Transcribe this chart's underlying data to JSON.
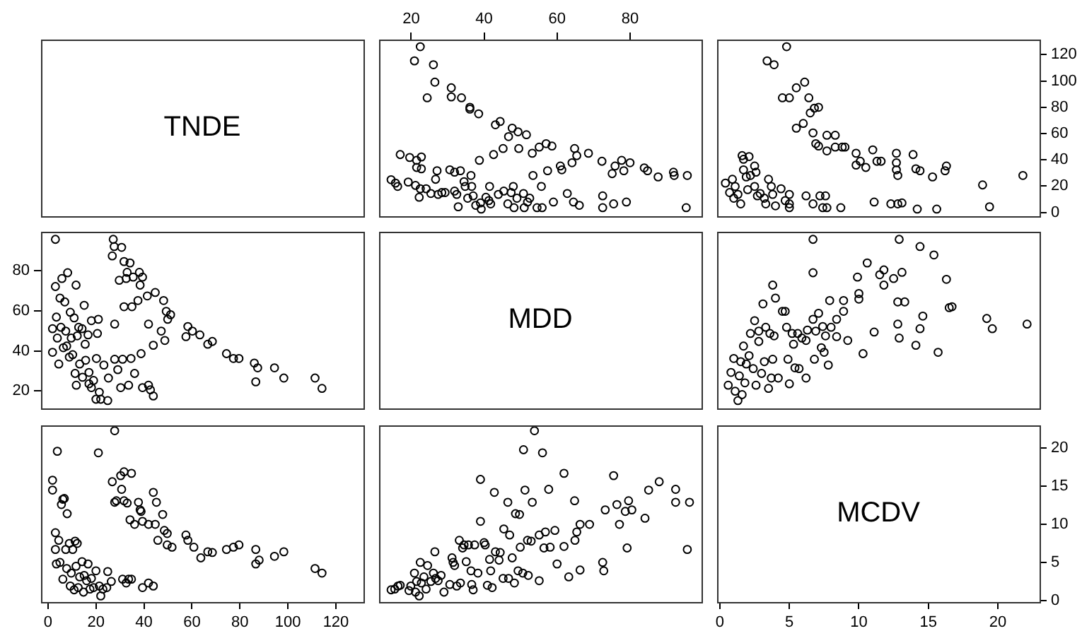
{
  "chart_data": [
    {
      "type": "other",
      "title": "TNDE"
    },
    {
      "type": "scatter",
      "xlim": [
        11.2,
        99.6
      ],
      "ylim": [
        -2.9,
        131.5
      ],
      "xticks": [
        20,
        40,
        60,
        80
      ],
      "tick_labels": "x",
      "marker": "circle",
      "series": [
        {
          "color": "#000000",
          "x": [
            14.5,
            15.7,
            16.3,
            17.0,
            19.2,
            19.6,
            20.9,
            22.5,
            21.2,
            21.5,
            21.5,
            22.8,
            22.8,
            22.5,
            22.2,
            24.1,
            24.4,
            26.1,
            26.5,
            27.1,
            26.7,
            25.4,
            27.4,
            28.4,
            29.3,
            31.0,
            31.0,
            30.6,
            31.9,
            31.9,
            32.5,
            32.9,
            33.5,
            33.8,
            34.5,
            34.8,
            35.5,
            36.1,
            36.1,
            36.4,
            36.6,
            37.0,
            37.7,
            38.5,
            38.7,
            39.0,
            39.2,
            40.5,
            41.3,
            41.5,
            41.8,
            42.6,
            43.1,
            44.4,
            43.9,
            45.2,
            45.4,
            46.5,
            46.7,
            47.4,
            47.7,
            48.0,
            48.2,
            49.3,
            49.5,
            49.0,
            50.8,
            51.0,
            51.6,
            51.9,
            52.5,
            53.2,
            53.4,
            54.5,
            55.1,
            55.7,
            55.9,
            57.0,
            57.4,
            58.6,
            59.0,
            60.9,
            61.3,
            62.8,
            64.1,
            64.5,
            64.8,
            65.4,
            66.1,
            68.6,
            72.3,
            72.5,
            72.5,
            75.1,
            75.9,
            77.7,
            78.3,
            80.0,
            79.0,
            83.9,
            84.8,
            87.7,
            91.9,
            92.1,
            95.7,
            95.4,
            75.5
          ],
          "values": [
            24.9,
            22.3,
            19.8,
            44.0,
            23.1,
            41.8,
            115.3,
            126.1,
            20.5,
            34.2,
            39.6,
            42.2,
            33.2,
            18.0,
            11.5,
            18.0,
            87.2,
            112.4,
            99.1,
            31.7,
            25.2,
            14.4,
            13.7,
            15.1,
            15.1,
            94.8,
            87.9,
            32.4,
            30.6,
            16.2,
            13.7,
            4.3,
            31.7,
            87.2,
            23.4,
            19.8,
            10.8,
            80.0,
            78.6,
            28.1,
            19.8,
            12.6,
            5.4,
            75.0,
            39.6,
            7.2,
            2.5,
            11.5,
            9.0,
            19.8,
            6.5,
            44.0,
            66.7,
            69.2,
            13.7,
            48.6,
            16.2,
            6.5,
            57.7,
            15.1,
            64.1,
            19.8,
            3.6,
            61.3,
            48.6,
            10.8,
            14.4,
            3.6,
            59.1,
            7.9,
            10.8,
            45.0,
            28.1,
            3.6,
            49.7,
            19.8,
            3.6,
            52.3,
            31.7,
            50.5,
            7.9,
            35.3,
            32.4,
            14.4,
            37.8,
            7.9,
            48.6,
            43.2,
            5.4,
            45.0,
            38.9,
            12.6,
            3.6,
            29.5,
            35.3,
            39.6,
            31.7,
            37.8,
            7.9,
            33.9,
            31.7,
            27.0,
            30.6,
            28.1,
            28.1,
            3.6,
            6.5
          ]
        }
      ]
    },
    {
      "type": "scatter",
      "xlim": [
        -0.2,
        23.0
      ],
      "ylim": [
        -2.9,
        131.5
      ],
      "yticks": [
        0,
        20,
        40,
        60,
        80,
        100,
        120
      ],
      "tick_labels": "y",
      "marker": "circle",
      "series": [
        {
          "color": "#000000",
          "x": [
            0.4,
            0.7,
            0.9,
            1.0,
            1.1,
            1.3,
            1.5,
            1.6,
            1.7,
            1.7,
            1.9,
            2.0,
            2.1,
            2.2,
            2.5,
            2.5,
            2.6,
            2.7,
            2.9,
            3.2,
            3.3,
            3.4,
            3.5,
            3.7,
            3.9,
            3.8,
            4.0,
            4.5,
            4.4,
            4.7,
            4.8,
            5.0,
            5.0,
            5.0,
            5.0,
            5.5,
            5.5,
            6.0,
            6.1,
            6.2,
            6.4,
            6.5,
            6.7,
            6.7,
            6.8,
            6.9,
            7.1,
            7.1,
            7.2,
            7.4,
            7.6,
            7.7,
            7.7,
            7.7,
            8.3,
            8.3,
            8.8,
            9.0,
            8.7,
            9.8,
            9.8,
            10.1,
            10.5,
            11.0,
            11.1,
            11.3,
            11.6,
            12.3,
            12.7,
            12.7,
            12.7,
            12.8,
            12.8,
            13.1,
            13.9,
            14.1,
            14.4,
            14.2,
            15.3,
            15.6,
            16.2,
            16.3,
            18.9,
            19.4,
            21.8
          ],
          "values": [
            22.3,
            15.1,
            25.2,
            10.8,
            19.8,
            13.7,
            6.5,
            43.2,
            40.4,
            32.4,
            27.0,
            17.3,
            42.5,
            28.1,
            35.3,
            19.8,
            30.6,
            12.6,
            14.4,
            10.8,
            6.5,
            115.3,
            25.2,
            19.8,
            112.4,
            13.7,
            5.0,
            87.2,
            18.0,
            9.0,
            126.1,
            3.6,
            87.2,
            13.7,
            6.5,
            94.8,
            64.1,
            67.7,
            99.1,
            12.6,
            87.2,
            75.7,
            6.5,
            60.5,
            79.3,
            52.3,
            80.0,
            50.5,
            12.6,
            3.6,
            12.6,
            46.8,
            58.7,
            3.6,
            58.7,
            49.7,
            49.7,
            49.7,
            3.6,
            45.0,
            36.0,
            38.9,
            34.2,
            47.6,
            7.9,
            38.9,
            38.9,
            6.5,
            45.0,
            37.8,
            32.4,
            28.1,
            6.5,
            7.2,
            44.0,
            33.2,
            31.7,
            2.5,
            27.0,
            2.5,
            31.7,
            35.3,
            20.9,
            4.3,
            28.1
          ]
        }
      ]
    },
    {
      "type": "scatter",
      "xlim": [
        -2.9,
        131.5
      ],
      "ylim": [
        11.2,
        99.6
      ],
      "yticks": [
        20,
        40,
        60,
        80
      ],
      "tick_labels": "y",
      "marker": "circle",
      "series": [
        {
          "color": "#000000",
          "x": [
            3.1,
            1.9,
            1.9,
            3.1,
            3.5,
            3.9,
            4.5,
            5.0,
            5.4,
            5.8,
            6.4,
            7.0,
            7.4,
            7.8,
            8.2,
            8.9,
            9.3,
            9.7,
            10.3,
            10.9,
            11.3,
            11.7,
            11.8,
            12.2,
            12.8,
            13.2,
            14.2,
            14.4,
            15.1,
            15.5,
            15.7,
            16.7,
            17.1,
            17.1,
            18.1,
            18.1,
            19.0,
            20.0,
            20.2,
            20.6,
            21.0,
            21.4,
            22.0,
            23.3,
            24.9,
            25.2,
            26.8,
            27.2,
            27.6,
            27.8,
            27.8,
            29.1,
            29.7,
            30.3,
            30.7,
            31.1,
            31.7,
            31.7,
            32.6,
            33.0,
            33.6,
            34.2,
            34.6,
            35.0,
            35.5,
            36.1,
            37.5,
            38.1,
            38.4,
            38.8,
            39.4,
            39.4,
            41.4,
            41.9,
            41.9,
            42.7,
            43.9,
            43.9,
            44.7,
            47.2,
            48.2,
            48.7,
            49.3,
            49.9,
            51.1,
            57.5,
            58.3,
            60.2,
            63.3,
            66.6,
            68.5,
            74.4,
            77.3,
            79.6,
            86.0,
            86.6,
            87.4,
            94.4,
            98.3,
            111.3,
            114.2
          ],
          "values": [
            95.8,
            51.1,
            39.3,
            72.2,
            56.9,
            46.4,
            33.4,
            66.4,
            51.8,
            76.2,
            41.6,
            64.5,
            49.9,
            42.4,
            79.1,
            36.9,
            59.3,
            46.4,
            38.1,
            56.5,
            28.7,
            72.9,
            22.8,
            47.5,
            51.8,
            33.4,
            51.1,
            26.8,
            62.8,
            43.3,
            35.3,
            48.0,
            29.2,
            23.5,
            55.1,
            21.6,
            25.2,
            15.8,
            36.2,
            48.7,
            55.8,
            19.3,
            15.8,
            32.9,
            15.1,
            26.4,
            87.5,
            95.8,
            92.2,
            53.4,
            35.8,
            30.6,
            75.3,
            21.6,
            91.8,
            35.8,
            62.1,
            84.7,
            76.2,
            79.3,
            22.8,
            84.0,
            36.2,
            62.1,
            76.9,
            28.7,
            65.2,
            79.3,
            72.9,
            38.6,
            76.9,
            21.6,
            67.5,
            53.4,
            22.8,
            20.5,
            42.8,
            17.4,
            69.2,
            49.9,
            65.2,
            45.2,
            59.8,
            55.8,
            58.1,
            47.1,
            52.2,
            49.9,
            48.0,
            43.3,
            44.7,
            38.6,
            36.2,
            36.2,
            33.9,
            24.5,
            31.5,
            31.5,
            26.4,
            26.4,
            21.2
          ]
        }
      ]
    },
    {
      "type": "other",
      "title": "MDD"
    },
    {
      "type": "scatter",
      "xlim": [
        -0.2,
        23.0
      ],
      "ylim": [
        11.2,
        99.6
      ],
      "tick_labels": false,
      "marker": "circle",
      "series": [
        {
          "color": "#000000",
          "x": [
            0.6,
            0.8,
            1.0,
            1.1,
            1.3,
            1.4,
            1.5,
            1.6,
            1.7,
            1.8,
            1.9,
            2.1,
            2.2,
            2.4,
            2.5,
            2.6,
            2.8,
            2.8,
            3.0,
            3.1,
            3.2,
            3.3,
            3.5,
            3.6,
            3.7,
            3.8,
            3.8,
            3.9,
            4.0,
            4.2,
            4.5,
            4.7,
            4.8,
            4.9,
            5.0,
            5.2,
            5.3,
            5.4,
            5.6,
            5.7,
            5.9,
            6.2,
            6.2,
            6.3,
            6.7,
            6.7,
            6.7,
            6.8,
            6.9,
            7.1,
            7.3,
            7.4,
            7.5,
            7.6,
            7.8,
            7.9,
            8.0,
            8.4,
            8.4,
            8.9,
            8.9,
            9.2,
            9.9,
            10.0,
            10.0,
            10.3,
            10.6,
            11.1,
            11.5,
            11.8,
            11.8,
            12.5,
            12.8,
            12.8,
            12.9,
            12.9,
            13.1,
            13.3,
            14.1,
            14.4,
            14.4,
            14.6,
            15.4,
            15.7,
            16.3,
            16.5,
            16.7,
            19.2,
            19.6,
            22.1
          ],
          "values": [
            22.8,
            29.2,
            36.2,
            19.8,
            15.1,
            27.5,
            34.6,
            18.1,
            42.4,
            24.0,
            33.4,
            37.6,
            48.7,
            31.1,
            55.1,
            22.8,
            44.7,
            49.9,
            28.7,
            63.5,
            34.6,
            51.8,
            21.2,
            48.7,
            26.4,
            72.9,
            35.8,
            47.5,
            66.4,
            26.4,
            59.8,
            59.8,
            51.8,
            35.8,
            23.5,
            48.7,
            43.3,
            31.5,
            48.7,
            31.1,
            46.4,
            45.2,
            26.4,
            50.4,
            95.8,
            79.1,
            55.8,
            35.8,
            49.9,
            58.8,
            41.6,
            52.2,
            39.3,
            47.5,
            32.9,
            65.2,
            51.8,
            47.1,
            55.8,
            59.8,
            65.2,
            45.2,
            76.9,
            68.7,
            65.9,
            38.6,
            84.0,
            49.4,
            78.1,
            80.5,
            72.9,
            76.2,
            53.4,
            64.5,
            46.4,
            95.8,
            79.3,
            64.5,
            42.8,
            51.1,
            92.2,
            57.4,
            88.0,
            39.3,
            75.8,
            61.6,
            62.1,
            56.2,
            51.1,
            53.4
          ]
        }
      ]
    },
    {
      "type": "scatter",
      "xlim": [
        -2.9,
        131.5
      ],
      "ylim": [
        -0.2,
        23.0
      ],
      "xticks": [
        0,
        20,
        40,
        60,
        80,
        100,
        120
      ],
      "tick_labels": "x",
      "marker": "circle",
      "series": [
        {
          "color": "#000000",
          "x": [
            1.9,
            1.9,
            3.1,
            3.9,
            3.1,
            3.5,
            4.5,
            5.0,
            5.6,
            6.2,
            6.8,
            6.2,
            7.4,
            7.8,
            8.0,
            8.9,
            9.3,
            9.7,
            10.3,
            10.9,
            11.3,
            11.7,
            12.2,
            12.6,
            13.2,
            14.2,
            14.8,
            15.1,
            16.1,
            16.7,
            17.5,
            18.1,
            19.0,
            20.0,
            21.0,
            21.4,
            22.0,
            22.9,
            24.5,
            24.9,
            26.4,
            26.8,
            27.8,
            27.8,
            28.5,
            30.3,
            30.7,
            31.1,
            31.7,
            31.7,
            32.6,
            33.0,
            33.6,
            34.2,
            34.8,
            34.8,
            36.1,
            37.7,
            38.4,
            38.8,
            39.4,
            39.4,
            41.9,
            41.9,
            43.9,
            43.9,
            44.7,
            45.2,
            45.8,
            47.8,
            48.5,
            49.7,
            49.7,
            51.7,
            57.5,
            58.3,
            60.8,
            63.7,
            66.6,
            68.5,
            74.4,
            77.3,
            79.6,
            86.6,
            86.6,
            88.0,
            94.4,
            98.3,
            111.3,
            114.2
          ],
          "values": [
            14.5,
            15.8,
            8.9,
            19.6,
            6.7,
            4.8,
            7.9,
            5.0,
            12.6,
            13.3,
            13.4,
            2.8,
            6.7,
            4.2,
            11.4,
            7.5,
            1.9,
            3.6,
            6.7,
            1.4,
            7.8,
            4.5,
            7.5,
            1.7,
            3.1,
            5.1,
            1.1,
            3.3,
            2.6,
            4.8,
            1.5,
            2.9,
            1.7,
            3.9,
            19.4,
            1.9,
            0.6,
            1.5,
            1.7,
            3.8,
            2.5,
            15.6,
            12.9,
            22.3,
            13.1,
            16.4,
            14.6,
            2.8,
            13.1,
            16.9,
            2.3,
            12.8,
            2.8,
            10.6,
            16.7,
            2.8,
            10.0,
            12.9,
            11.9,
            11.7,
            1.7,
            10.4,
            10.0,
            2.3,
            1.9,
            14.2,
            10.0,
            12.9,
            7.9,
            11.3,
            9.2,
            8.8,
            7.3,
            7.0,
            8.6,
            7.9,
            7.0,
            5.6,
            6.4,
            6.3,
            6.7,
            7.0,
            7.3,
            6.7,
            4.8,
            5.3,
            5.8,
            6.4,
            4.2,
            3.6
          ]
        }
      ]
    },
    {
      "type": "scatter",
      "xlim": [
        11.2,
        99.6
      ],
      "ylim": [
        -0.2,
        23.0
      ],
      "tick_labels": false,
      "marker": "circle",
      "series": [
        {
          "color": "#000000",
          "x": [
            14.5,
            15.5,
            16.4,
            17.0,
            19.4,
            19.9,
            20.9,
            21.2,
            21.5,
            22.2,
            22.5,
            22.8,
            23.5,
            24.1,
            24.5,
            25.4,
            26.1,
            26.5,
            26.7,
            27.4,
            28.2,
            29.0,
            30.6,
            31.2,
            31.5,
            31.9,
            32.5,
            33.2,
            33.5,
            34.1,
            34.5,
            35.1,
            35.7,
            36.4,
            36.6,
            37.0,
            37.4,
            38.3,
            39.0,
            39.0,
            40.0,
            40.3,
            40.9,
            41.5,
            41.8,
            42.2,
            42.8,
            43.1,
            44.1,
            44.4,
            45.2,
            45.4,
            46.5,
            46.7,
            47.0,
            47.7,
            48.3,
            48.6,
            49.3,
            49.7,
            49.9,
            50.6,
            50.8,
            51.2,
            51.9,
            52.1,
            52.9,
            53.2,
            53.8,
            55.1,
            55.1,
            56.0,
            56.4,
            56.8,
            57.7,
            58.1,
            59.4,
            60.0,
            61.9,
            61.9,
            63.2,
            64.8,
            64.9,
            65.4,
            66.3,
            66.3,
            68.9,
            72.5,
            72.8,
            73.2,
            75.5,
            76.4,
            77.1,
            78.7,
            79.2,
            79.6,
            80.5,
            84.1,
            85.1,
            88.0,
            92.5,
            92.5,
            95.7,
            96.3
          ],
          "values": [
            1.4,
            1.5,
            1.9,
            2.0,
            1.3,
            1.9,
            3.6,
            1.1,
            2.5,
            0.6,
            5.0,
            2.3,
            3.1,
            1.5,
            4.6,
            2.5,
            3.6,
            6.4,
            2.9,
            2.6,
            3.3,
            1.1,
            2.1,
            5.6,
            5.0,
            4.6,
            1.9,
            7.9,
            2.3,
            6.9,
            7.3,
            5.1,
            7.3,
            3.9,
            2.1,
            1.4,
            7.3,
            3.6,
            10.4,
            15.9,
            7.6,
            7.3,
            2.0,
            5.4,
            3.9,
            1.7,
            14.2,
            6.4,
            5.3,
            6.3,
            2.9,
            9.4,
            12.9,
            2.9,
            8.6,
            5.6,
            2.3,
            11.4,
            3.9,
            11.3,
            7.0,
            3.6,
            19.8,
            14.5,
            7.9,
            3.3,
            7.8,
            12.9,
            22.3,
            8.6,
            2.6,
            19.4,
            6.9,
            9.0,
            14.6,
            7.0,
            9.2,
            4.8,
            16.7,
            7.1,
            3.1,
            13.1,
            7.9,
            9.0,
            10.0,
            4.0,
            10.0,
            5.0,
            3.9,
            11.9,
            16.4,
            12.6,
            10.0,
            11.7,
            6.9,
            13.1,
            11.9,
            10.8,
            14.5,
            15.6,
            14.6,
            12.9,
            6.7,
            12.9
          ]
        }
      ]
    },
    {
      "type": "scatter",
      "title": "MCDV",
      "xlim": [
        -0.2,
        23.0
      ],
      "ylim": [
        -0.2,
        23.0
      ],
      "xticks": [
        0,
        5,
        10,
        15,
        20
      ],
      "yticks": [
        0,
        5,
        10,
        15,
        20
      ]
    }
  ]
}
